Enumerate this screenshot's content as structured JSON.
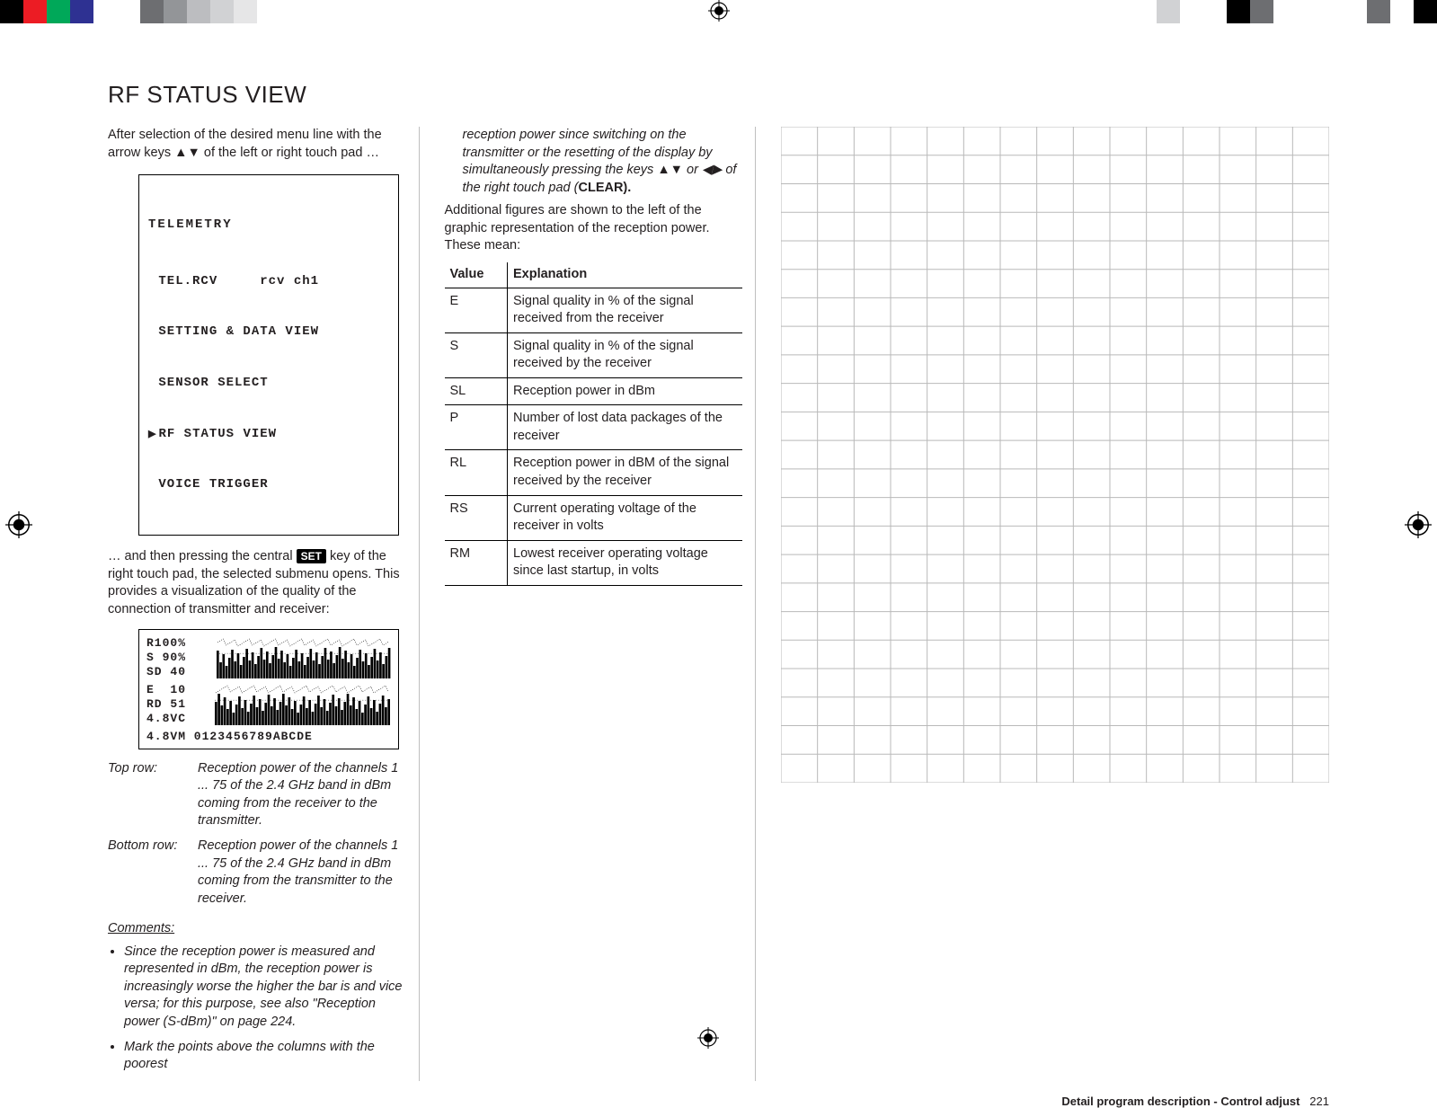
{
  "glyphs": {
    "up": "▲",
    "down": "▼",
    "left": "◀",
    "right": "▶"
  },
  "title": "RF STATUS VIEW",
  "col1": {
    "intro_a": "After selection of the desired menu line with the arrow keys ",
    "intro_b": " of the left or right touch pad …",
    "lcd": {
      "header": "TELEMETRY",
      "l1a": "TEL.RCV",
      "l1b": "rcv ch1",
      "l2": "SETTING & DATA VIEW",
      "l3": "SENSOR SELECT",
      "l4": "RF STATUS VIEW",
      "l5": "VOICE TRIGGER"
    },
    "after_lcd_a": "… and then pressing the central ",
    "set_label": "SET",
    "after_lcd_b": " key of the right touch pad, the selected submenu opens. This provides a visualization of the quality of the connection of transmitter and receiver:",
    "rf": {
      "r_line": "R100%",
      "s_line": "S 90%",
      "sd_line": "SD 40",
      "e_line": "E  10",
      "rd_line": "RD 51",
      "vc_line": "4.8VC",
      "footer": "4.8VM 0123456789ABCDE"
    },
    "toprow_label": "Top row:",
    "toprow_text": "Reception power of the channels 1 ... 75 of the 2.4 GHz band in dBm coming from the receiver to the transmitter.",
    "botrow_label": "Bottom row:",
    "botrow_text": "Reception power of the channels 1 ... 75 of the 2.4 GHz band in dBm coming from the transmitter to the receiver.",
    "comments_hdr": "Comments:",
    "comment1": "Since the reception power is measured and represented in dBm, the reception power is increasingly worse the higher the bar is and vice versa; for this purpose, see also \"Reception power (S-dBm)\" on page 224.",
    "comment2": "Mark the points above the columns with the poorest"
  },
  "col2": {
    "cont_a": "reception power since switching on the transmitter or the resetting of the display by simultaneously pressing the keys ",
    "cont_b": " or ",
    "cont_c": " of the right touch pad (",
    "clear_label": "CLEAR).",
    "para2": "Additional figures are shown to the left of the graphic representation of the reception power. These mean:",
    "th1": "Value",
    "th2": "Explanation",
    "rows": [
      {
        "v": "E",
        "e": "Signal quality in % of the signal received from the receiver"
      },
      {
        "v": "S",
        "e": "Signal quality in % of the signal received by the receiver"
      },
      {
        "v": "SL",
        "e": "Reception power in dBm"
      },
      {
        "v": "P",
        "e": "Number of lost data packages of the receiver"
      },
      {
        "v": "RL",
        "e": "Reception power in dBM of the signal received by the receiver"
      },
      {
        "v": "RS",
        "e": "Current operating voltage of the receiver in volts"
      },
      {
        "v": "RM",
        "e": "Lowest receiver operating voltage since last startup, in volts"
      }
    ]
  },
  "grid": {
    "cols": 15,
    "rows": 23,
    "stroke": "#b9b9b9"
  },
  "footer": {
    "bold": "Detail program description - Control adjust",
    "page": "221"
  },
  "reg": {
    "colors_left": [
      "#000000",
      "#ec1c24",
      "#00a859",
      "#2e3192",
      "#ffffff",
      "#ffffff",
      "#6d6e71",
      "#939598",
      "#bcbdc0",
      "#d1d2d4",
      "#e6e6e7",
      "#ffffff"
    ],
    "colors_right_top": [
      "#d1d2d4",
      "#ffffff",
      "#ffffff",
      "#000000",
      "#6d6e71",
      "#ffffff",
      "#ffffff",
      "#ffffff",
      "#ffffff",
      "#6d6e71",
      "#ffffff",
      "#000000"
    ],
    "colors_right_bot": [
      "#000000",
      "#ffffff",
      "#6d6e71",
      "#ffffff",
      "#ffffff",
      "#ffffff",
      "#ffffff",
      "#6d6e71",
      "#000000",
      "#ffffff",
      "#ffffff",
      "#d1d2d4"
    ],
    "seg_w": 26
  }
}
